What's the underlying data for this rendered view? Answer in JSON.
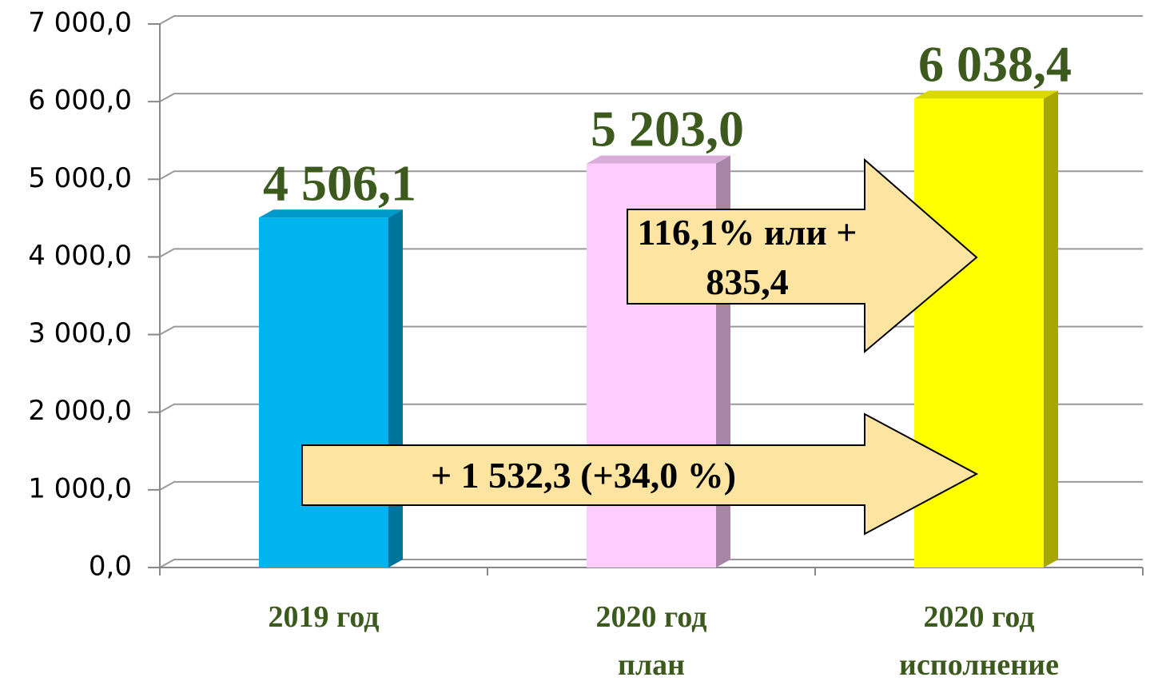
{
  "chart_data": {
    "type": "bar",
    "categories": [
      "2019 год",
      "2020 год план",
      "2020 год исполнение"
    ],
    "values": [
      4506.1,
      5203.0,
      6038.4
    ],
    "value_labels": [
      "4 506,1",
      "5 203,0",
      "6 038,4"
    ],
    "colors": [
      "#00b4f0",
      "#ffccff",
      "#ffff00"
    ],
    "ylim": [
      0,
      7000
    ],
    "yticks": [
      {
        "value": 0,
        "label": "0,0"
      },
      {
        "value": 1000,
        "label": "1 000,0"
      },
      {
        "value": 2000,
        "label": "2 000,0"
      },
      {
        "value": 3000,
        "label": "3 000,0"
      },
      {
        "value": 4000,
        "label": "4 000,0"
      },
      {
        "value": 5000,
        "label": "5 000,0"
      },
      {
        "value": 6000,
        "label": "6 000,0"
      },
      {
        "value": 7000,
        "label": "7 000,0"
      }
    ],
    "grid": true,
    "annotations": [
      "116,1% или + 835,4",
      "+ 1 532,3 (+34,0 %)"
    ]
  }
}
